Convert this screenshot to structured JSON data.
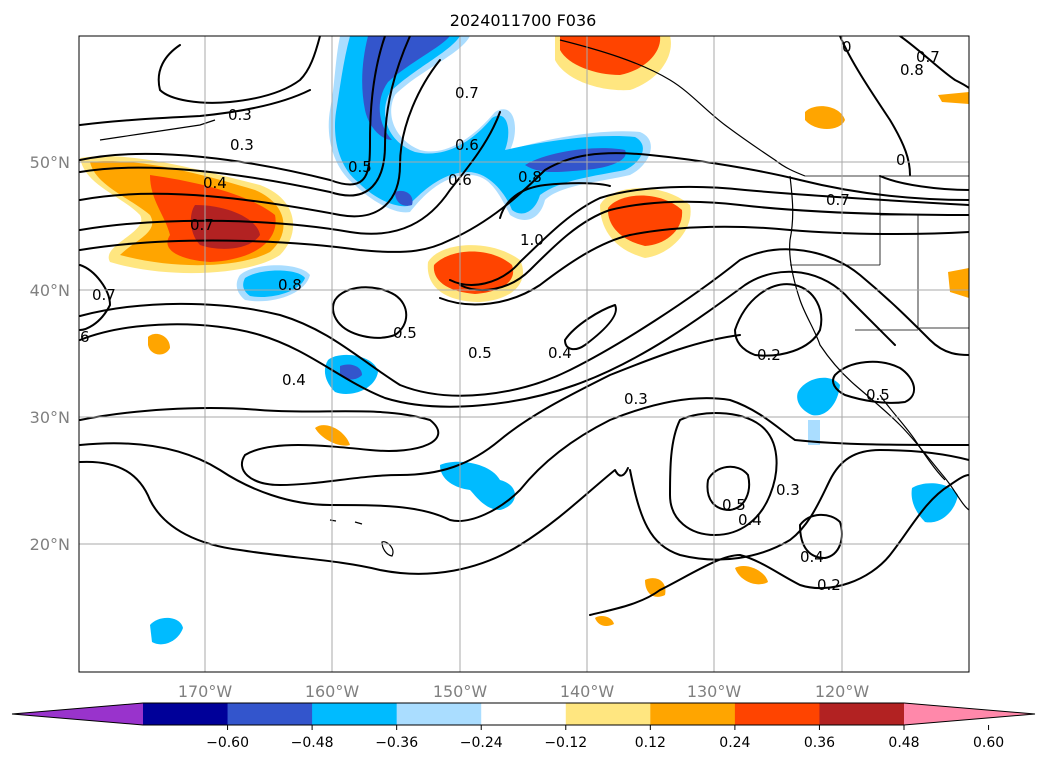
{
  "title": "2024011700 F036",
  "lat_ticks": [
    "50°N",
    "40°N",
    "30°N",
    "20°N"
  ],
  "lon_ticks": [
    "170°W",
    "160°W",
    "150°W",
    "140°W",
    "130°W",
    "120°W"
  ],
  "colorbar": {
    "ticks": [
      "−0.60",
      "−0.48",
      "−0.36",
      "−0.24",
      "−0.12",
      "0.12",
      "0.24",
      "0.36",
      "0.48",
      "0.60"
    ],
    "colors": [
      "#9933cc",
      "#000099",
      "#3355cc",
      "#00bbff",
      "#aaddff",
      "#ffffff",
      "#ffe680",
      "#ffa500",
      "#ff4400",
      "#b22222",
      "#ff88aa"
    ]
  },
  "contour_labels": [
    "0.3",
    "0.3",
    "0.4",
    "0.7",
    "0.8",
    "0.7",
    "6",
    "0.5",
    "0.4",
    "0.5",
    "0.7",
    "0.6",
    "0.6",
    "0.5",
    "0.8",
    "1.0",
    "0.4",
    "0.3",
    "0.2",
    "0.5",
    "0.7",
    "0",
    "0.7",
    "0.8",
    "0",
    "0.5",
    "0.4",
    "0.3",
    "0.4",
    "0.2"
  ],
  "colors": {
    "grid": "#a8a8a8",
    "tick_label": "#808080"
  }
}
